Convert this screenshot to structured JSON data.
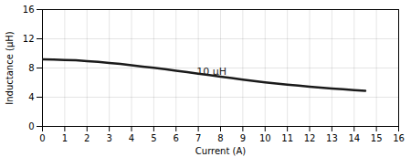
{
  "chart_data": {
    "type": "line",
    "xlabel": "Current (A)",
    "ylabel": "Inductance (μH)",
    "x": [
      0,
      0.5,
      1.0,
      1.5,
      2.0,
      2.5,
      3.0,
      3.5,
      4.0,
      4.5,
      5.0,
      5.5,
      6.0,
      6.5,
      7.0,
      7.5,
      8.0,
      8.5,
      9.0,
      9.5,
      10.0,
      10.5,
      11.0,
      11.5,
      12.0,
      12.5,
      13.0,
      13.5,
      14.0,
      14.5
    ],
    "values": [
      9.2,
      9.15,
      9.1,
      9.05,
      8.95,
      8.83,
      8.7,
      8.55,
      8.38,
      8.2,
      8.02,
      7.83,
      7.63,
      7.43,
      7.22,
      7.02,
      6.82,
      6.62,
      6.42,
      6.22,
      6.03,
      5.87,
      5.72,
      5.58,
      5.44,
      5.31,
      5.19,
      5.08,
      4.98,
      4.88
    ],
    "color": "#1a1a1a",
    "xlim": [
      0,
      16
    ],
    "ylim": [
      0,
      16
    ],
    "xticks": [
      0,
      1,
      2,
      3,
      4,
      5,
      6,
      7,
      8,
      9,
      10,
      11,
      12,
      13,
      14,
      15,
      16
    ],
    "yticks": [
      0,
      4,
      8,
      12,
      16
    ],
    "grid": true,
    "annotations": [
      {
        "text": "10 μH",
        "x": 6.8,
        "y": 7.55
      }
    ]
  }
}
